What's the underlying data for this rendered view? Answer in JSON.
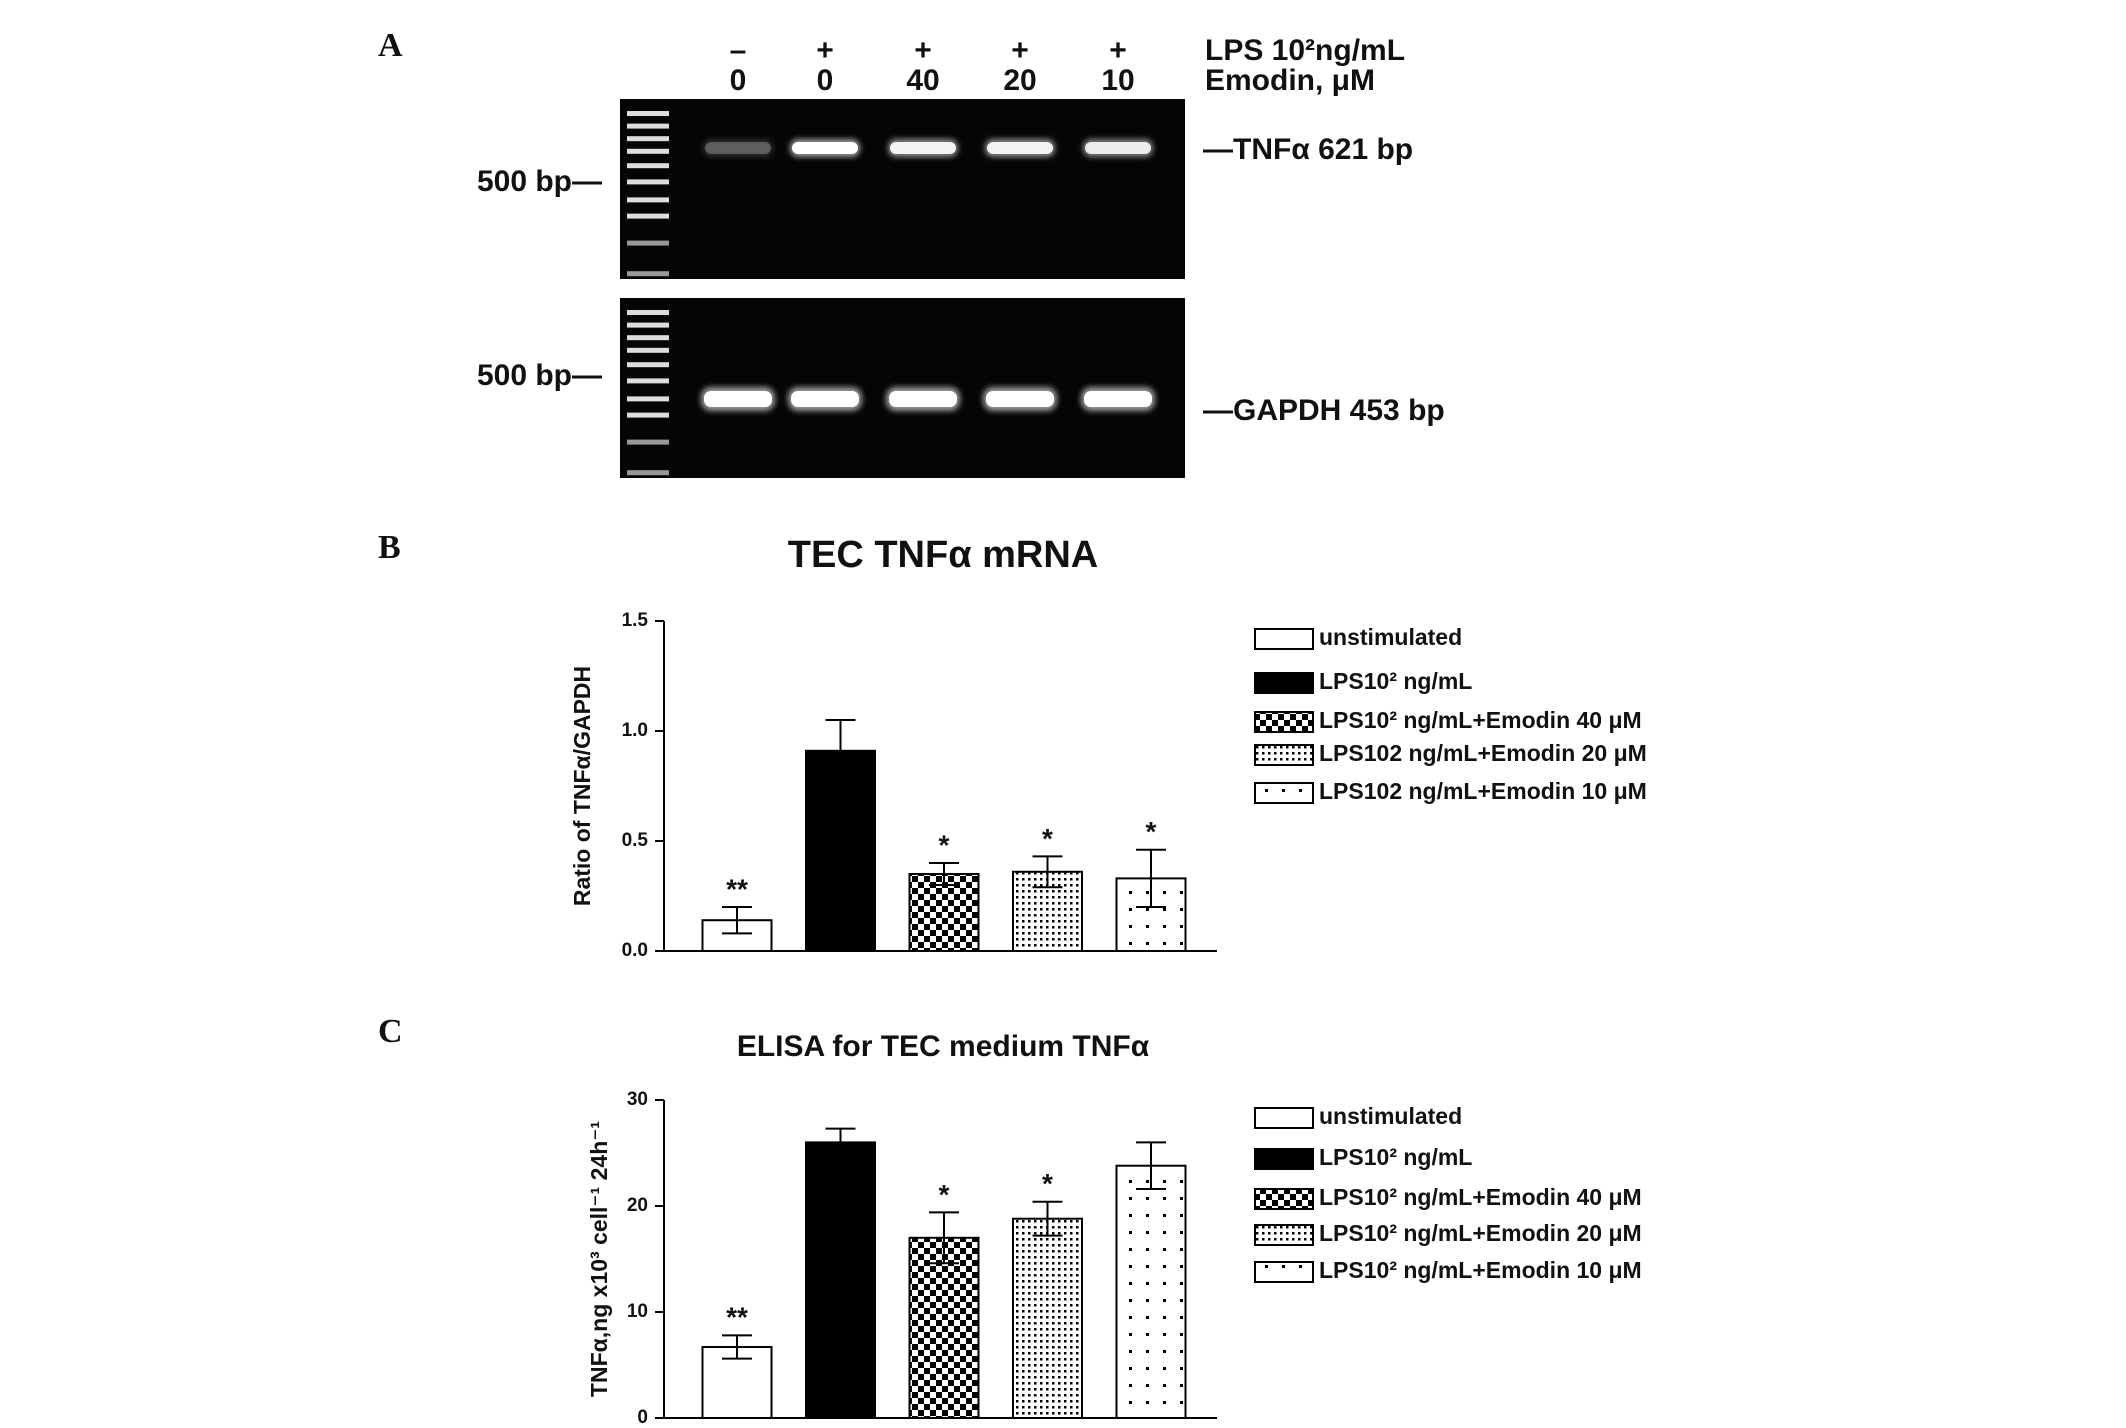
{
  "panel_labels": [
    "A",
    "B",
    "C"
  ],
  "gel": {
    "lps_row": [
      "–",
      "+",
      "+",
      "+",
      "+"
    ],
    "emodin_row": [
      "0",
      "0",
      "40",
      "20",
      "10"
    ],
    "lps_label": "LPS 10²ng/mL",
    "emodin_label": "Emodin, μM",
    "marker_top": "500 bp—",
    "marker_bottom": "500 bp—",
    "tnf_band": "—TNFα 621 bp",
    "gapdh_band": "—GAPDH 453 bp"
  },
  "chart_data": [
    {
      "type": "bar",
      "title": "TEC TNFα mRNA",
      "y_label": "Ratio of TNFα/GAPDH",
      "ylim": [
        0,
        1.5
      ],
      "yticks": [
        {
          "value": 0,
          "label": "0.0"
        },
        0.5,
        {
          "value": 1,
          "label": "1.0"
        },
        1.5
      ],
      "series": [
        {
          "name": "unstimulated",
          "color": "#ffffff",
          "values": [
            0.14
          ],
          "errors": [
            0.06
          ],
          "annotations": [
            "**"
          ]
        },
        {
          "name": "LPS10² ng/mL",
          "color": "#000000",
          "values": [
            0.91
          ],
          "errors": [
            0.14
          ]
        },
        {
          "name": "LPS10² ng/mL+Emodin 40 μM",
          "color": "#000000",
          "pattern": "checker",
          "values": [
            0.35
          ],
          "errors": [
            0.05
          ],
          "annotations": [
            "*"
          ]
        },
        {
          "name": "LPS102 ng/mL+Emodin 20 μM",
          "color": "#000000",
          "pattern": "dense-dots",
          "values": [
            0.36
          ],
          "errors": [
            0.07
          ],
          "annotations": [
            "*"
          ]
        },
        {
          "name": "LPS102 ng/mL+Emodin 10 μM",
          "color": "#000000",
          "pattern": "sparse-dots",
          "values": [
            0.33
          ],
          "errors": [
            0.13
          ],
          "annotations": [
            "*"
          ]
        }
      ]
    },
    {
      "type": "bar",
      "title": "ELISA for TEC medium TNFα",
      "y_label": "TNFα,ng x10³ cell⁻¹ 24h⁻¹",
      "ylim": [
        0,
        30
      ],
      "yticks": [
        0,
        10,
        20,
        30
      ],
      "series": [
        {
          "name": "unstimulated",
          "color": "#ffffff",
          "values": [
            6.7
          ],
          "errors": [
            1.1
          ],
          "annotations": [
            "**"
          ]
        },
        {
          "name": "LPS10² ng/mL",
          "color": "#000000",
          "values": [
            26
          ],
          "errors": [
            1.3
          ]
        },
        {
          "name": "LPS10² ng/mL+Emodin 40 μM",
          "color": "#000000",
          "pattern": "checker",
          "values": [
            17
          ],
          "errors": [
            2.4
          ],
          "annotations": [
            "*"
          ]
        },
        {
          "name": "LPS10² ng/mL+Emodin 20 μM",
          "color": "#000000",
          "pattern": "dense-dots",
          "values": [
            18.8
          ],
          "errors": [
            1.6
          ],
          "annotations": [
            "*"
          ]
        },
        {
          "name": "LPS10² ng/mL+Emodin 10 μM",
          "color": "#000000",
          "pattern": "sparse-dots",
          "values": [
            23.8
          ],
          "errors": [
            2.2
          ]
        }
      ]
    }
  ]
}
